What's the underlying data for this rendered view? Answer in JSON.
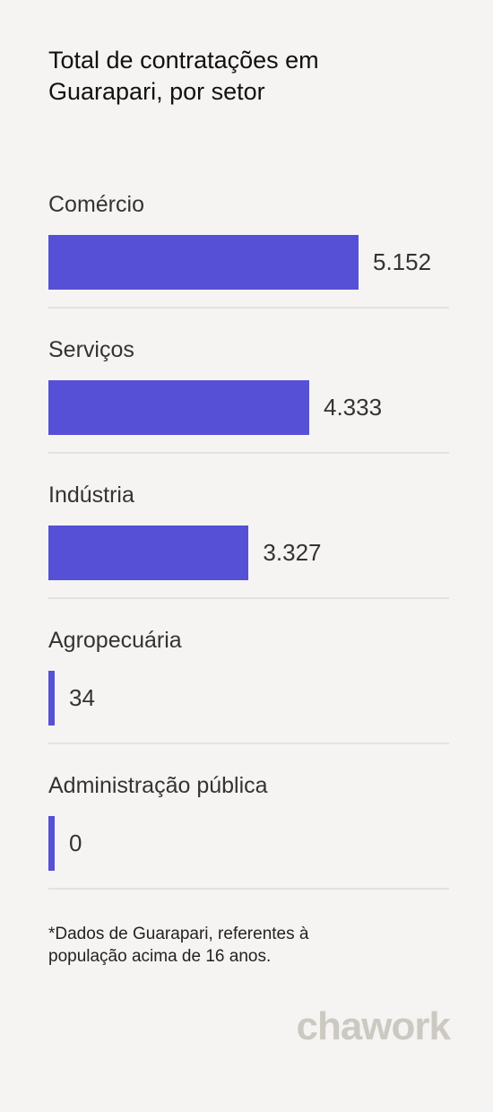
{
  "chart_data": {
    "type": "bar",
    "orientation": "horizontal",
    "title": "Total de contratações em Guarapari, por setor",
    "categories": [
      "Comércio",
      "Serviços",
      "Indústria",
      "Agropecuária",
      "Administração pública"
    ],
    "values": [
      5152,
      4333,
      3327,
      34,
      0
    ],
    "value_labels": [
      "5.152",
      "4.333",
      "3.327",
      "34",
      "0"
    ],
    "color": "#5650d6",
    "note": "*Dados de Guarapari, referentes à população acima de 16 anos.",
    "brand": "chawork"
  }
}
